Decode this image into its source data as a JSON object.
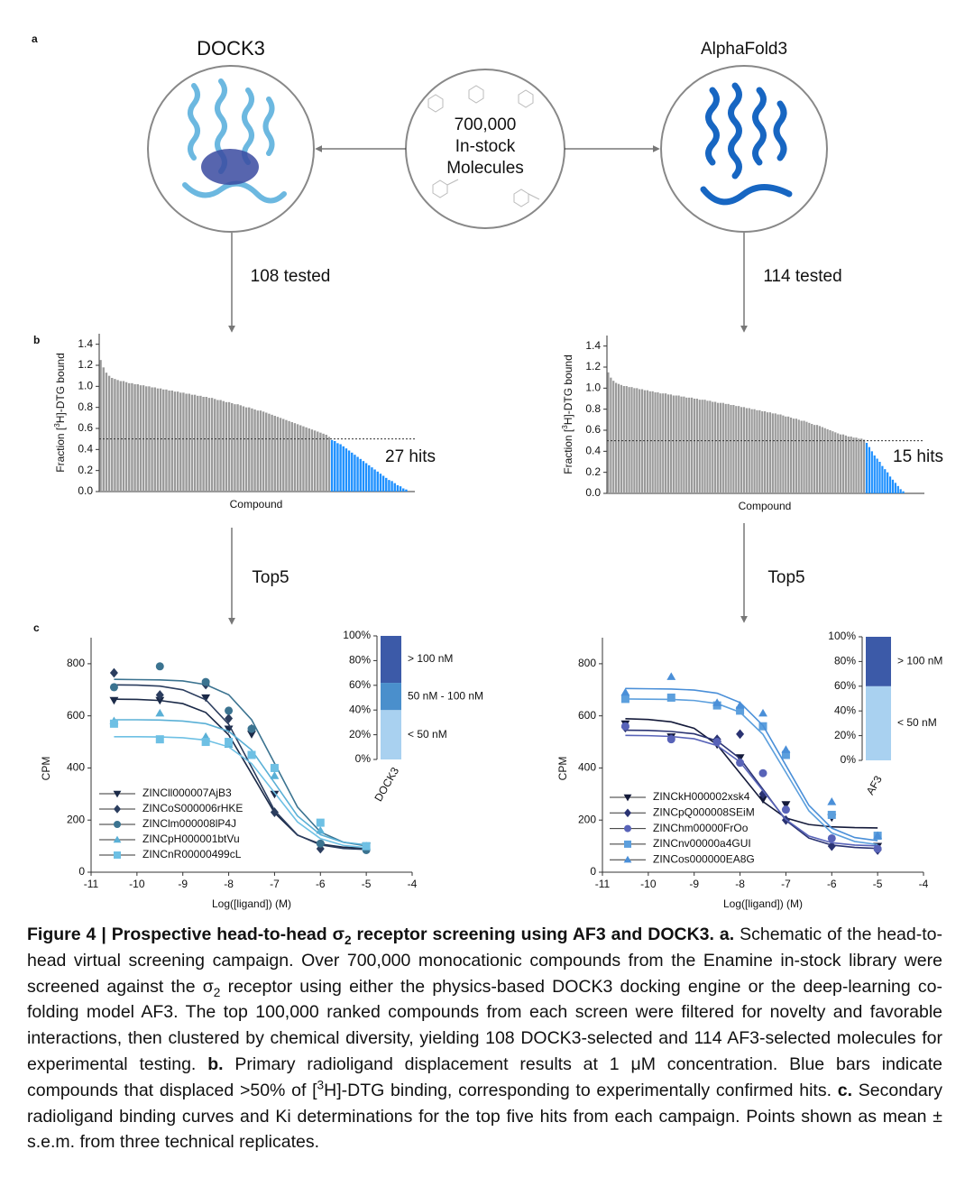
{
  "panel_a": {
    "label": "a",
    "left_title": "DOCK3",
    "right_title": "AlphaFold3",
    "center_text": [
      "700,000",
      "In-stock",
      "Molecules"
    ],
    "left_count": "108 tested",
    "right_count": "114 tested"
  },
  "panel_b_label": "b",
  "panel_c_label": "c",
  "top_labels": [
    "Top5",
    "Top5"
  ],
  "chart_data": [
    {
      "type": "bar",
      "xlabel": "Compound",
      "ylabel": [
        {
          "text": "Fraction ["
        },
        {
          "text": "3",
          "style": "sup"
        },
        {
          "text": "H]-DTG bound"
        }
      ],
      "ylim": [
        0,
        1.5
      ],
      "yticks": [
        {
          "value": 0,
          "label": "0.0"
        },
        0.2,
        0.4,
        0.6,
        0.8,
        {
          "value": 1,
          "label": "1.0"
        },
        1.2,
        1.4
      ],
      "threshold": 0.5,
      "annotation": "27 hits",
      "series": [
        {
          "color": "#9a9a9a",
          "values": [
            1.25,
            1.18,
            1.13,
            1.1,
            1.08,
            1.07,
            1.06,
            1.05,
            1.05,
            1.04,
            1.03,
            1.03,
            1.02,
            1.02,
            1.01,
            1.01,
            1.0,
            1.0,
            0.99,
            0.99,
            0.98,
            0.98,
            0.97,
            0.97,
            0.96,
            0.96,
            0.95,
            0.95,
            0.94,
            0.94,
            0.93,
            0.93,
            0.92,
            0.92,
            0.91,
            0.91,
            0.9,
            0.9,
            0.89,
            0.89,
            0.88,
            0.87,
            0.87,
            0.86,
            0.85,
            0.85,
            0.84,
            0.83,
            0.83,
            0.82,
            0.81,
            0.8,
            0.8,
            0.79,
            0.78,
            0.77,
            0.77,
            0.76,
            0.75,
            0.74,
            0.73,
            0.72,
            0.71,
            0.7,
            0.69,
            0.68,
            0.67,
            0.66,
            0.65,
            0.64,
            0.63,
            0.62,
            0.61,
            0.6,
            0.59,
            0.58,
            0.57,
            0.56,
            0.55,
            0.54,
            0.52
          ]
        },
        {
          "color": "#1e90ff",
          "values": [
            0.49,
            0.48,
            0.46,
            0.45,
            0.43,
            0.41,
            0.39,
            0.37,
            0.35,
            0.33,
            0.31,
            0.29,
            0.27,
            0.25,
            0.23,
            0.21,
            0.19,
            0.17,
            0.15,
            0.13,
            0.11,
            0.1,
            0.08,
            0.06,
            0.05,
            0.03,
            0.02
          ]
        }
      ]
    },
    {
      "type": "bar",
      "xlabel": "Compound",
      "ylabel": [
        {
          "text": "Fraction ["
        },
        {
          "text": "3",
          "style": "sup"
        },
        {
          "text": "H]-DTG bound"
        }
      ],
      "ylim": [
        0,
        1.5
      ],
      "yticks": [
        {
          "value": 0,
          "label": "0.0"
        },
        0.2,
        0.4,
        0.6,
        0.8,
        {
          "value": 1,
          "label": "1.0"
        },
        1.2,
        1.4
      ],
      "threshold": 0.5,
      "annotation": "15 hits",
      "series": [
        {
          "color": "#9a9a9a",
          "values": [
            1.15,
            1.1,
            1.07,
            1.05,
            1.04,
            1.03,
            1.02,
            1.02,
            1.01,
            1.01,
            1.0,
            1.0,
            0.99,
            0.99,
            0.98,
            0.98,
            0.97,
            0.97,
            0.96,
            0.96,
            0.95,
            0.95,
            0.95,
            0.94,
            0.94,
            0.93,
            0.93,
            0.93,
            0.92,
            0.92,
            0.91,
            0.91,
            0.91,
            0.9,
            0.9,
            0.89,
            0.89,
            0.89,
            0.88,
            0.88,
            0.87,
            0.87,
            0.86,
            0.86,
            0.86,
            0.85,
            0.85,
            0.84,
            0.84,
            0.83,
            0.83,
            0.82,
            0.82,
            0.81,
            0.81,
            0.8,
            0.8,
            0.79,
            0.79,
            0.78,
            0.78,
            0.77,
            0.77,
            0.76,
            0.76,
            0.75,
            0.75,
            0.74,
            0.73,
            0.73,
            0.72,
            0.71,
            0.71,
            0.7,
            0.69,
            0.69,
            0.68,
            0.67,
            0.66,
            0.65,
            0.65,
            0.64,
            0.63,
            0.62,
            0.61,
            0.6,
            0.59,
            0.58,
            0.57,
            0.56,
            0.56,
            0.55,
            0.54,
            0.54,
            0.53,
            0.53,
            0.52,
            0.52,
            0.51
          ]
        },
        {
          "color": "#1e90ff",
          "values": [
            0.48,
            0.44,
            0.4,
            0.36,
            0.33,
            0.3,
            0.26,
            0.23,
            0.2,
            0.16,
            0.13,
            0.1,
            0.07,
            0.04,
            0.02
          ]
        }
      ]
    },
    {
      "type": "dose-response",
      "xlabel": "Log([ligand]) (M)",
      "ylabel": "CPM",
      "xlim": [
        -11,
        -4
      ],
      "xticks": [
        -11,
        -10,
        -9,
        -8,
        -7,
        -6,
        -5,
        -4
      ],
      "ylim": [
        0,
        900
      ],
      "yticks": [
        0,
        200,
        400,
        600,
        800
      ],
      "x": [
        -10.5,
        -9.5,
        -8.5,
        -8,
        -7.5,
        -7,
        -6,
        -5
      ],
      "fit_x": [
        -10.5,
        -10,
        -9.5,
        -9,
        -8.5,
        -8,
        -7.5,
        -7,
        -6.5,
        -6,
        -5.5,
        -5
      ],
      "series": [
        {
          "name": "ZINCll000007AjB3",
          "color": "#1b2a48",
          "marker": "inverted-triangle",
          "values": [
            660,
            660,
            670,
            550,
            530,
            300,
            100,
            100
          ],
          "fit_values": [
            664,
            663,
            659,
            647,
            613,
            527,
            378,
            228,
            142,
            108,
            96,
            92
          ]
        },
        {
          "name": "ZINCoS000006rHKE",
          "color": "#2b3d5e",
          "marker": "diamond",
          "values": [
            765,
            680,
            720,
            590,
            550,
            230,
            90,
            90
          ],
          "fit_values": [
            719,
            718,
            714,
            700,
            662,
            568,
            403,
            237,
            143,
            105,
            91,
            87
          ]
        },
        {
          "name": "ZINClm000008lP4J",
          "color": "#3b7390",
          "marker": "circle",
          "values": [
            710,
            790,
            730,
            620,
            550,
            400,
            110,
            85
          ],
          "fit_values": [
            740,
            739,
            738,
            734,
            720,
            681,
            585,
            418,
            250,
            154,
            115,
            101
          ]
        },
        {
          "name": "ZINCpH000001btVu",
          "color": "#5ab0d6",
          "marker": "triangle",
          "values": [
            580,
            610,
            520,
            490,
            450,
            370,
            160,
            100
          ],
          "fit_values": [
            585,
            585,
            584,
            580,
            570,
            541,
            469,
            343,
            216,
            144,
            115,
            105
          ]
        },
        {
          "name": "ZINCnR00000499cL",
          "color": "#6ec0e4",
          "marker": "square",
          "values": [
            570,
            510,
            500,
            500,
            450,
            400,
            190,
            100
          ],
          "fit_values": [
            520,
            520,
            519,
            516,
            507,
            481,
            417,
            305,
            193,
            129,
            103,
            94
          ]
        }
      ]
    },
    {
      "type": "dose-response",
      "xlabel": "Log([ligand]) (M)",
      "ylabel": "CPM",
      "xlim": [
        -11,
        -4
      ],
      "xticks": [
        -11,
        -10,
        -9,
        -8,
        -7,
        -6,
        -5,
        -4
      ],
      "ylim": [
        0,
        900
      ],
      "yticks": [
        0,
        200,
        400,
        600,
        800
      ],
      "x": [
        -10.5,
        -9.5,
        -8.5,
        -8,
        -7.5,
        -7,
        -6,
        -5
      ],
      "fit_x": [
        -10.5,
        -10,
        -9.5,
        -9,
        -8.5,
        -8,
        -7.5,
        -7,
        -6.5,
        -6,
        -5.5,
        -5
      ],
      "series": [
        {
          "name": "ZINCkH000002xsk4",
          "color": "#141a3a",
          "marker": "inverted-triangle",
          "values": [
            570,
            520,
            490,
            440,
            280,
            260,
            210,
            100
          ],
          "fit_values": [
            589,
            586,
            577,
            552,
            489,
            380,
            271,
            208,
            183,
            174,
            171,
            170
          ]
        },
        {
          "name": "ZINCpQ000008SEiM",
          "color": "#2a3372",
          "marker": "diamond",
          "values": [
            555,
            515,
            510,
            530,
            300,
            200,
            100,
            85
          ],
          "fit_values": [
            545,
            544,
            540,
            531,
            504,
            436,
            318,
            199,
            131,
            104,
            95,
            91
          ]
        },
        {
          "name": "ZINChm00000FrOo",
          "color": "#5863b8",
          "marker": "circle",
          "values": [
            560,
            510,
            500,
            420,
            380,
            240,
            130,
            90
          ],
          "fit_values": [
            525,
            524,
            521,
            512,
            486,
            423,
            313,
            202,
            139,
            113,
            104,
            101
          ]
        },
        {
          "name": "ZINCnv00000a4GUI",
          "color": "#5c9fdd",
          "marker": "square",
          "values": [
            665,
            670,
            640,
            620,
            560,
            450,
            220,
            140
          ],
          "fit_values": [
            665,
            664,
            663,
            659,
            647,
            614,
            529,
            383,
            236,
            151,
            118,
            106
          ]
        },
        {
          "name": "ZINCos000000EA8G",
          "color": "#4a8fd8",
          "marker": "triangle",
          "values": [
            690,
            750,
            650,
            640,
            610,
            470,
            270,
            140
          ],
          "fit_values": [
            705,
            704,
            703,
            699,
            687,
            651,
            563,
            410,
            257,
            169,
            133,
            121
          ]
        }
      ]
    },
    {
      "type": "stacked-bar",
      "categories": [
        "DOCK3"
      ],
      "ylim": [
        0,
        100
      ],
      "yticks": [
        {
          "value": 0,
          "label": "0%"
        },
        {
          "value": 20,
          "label": "20%"
        },
        {
          "value": 40,
          "label": "40%"
        },
        {
          "value": 60,
          "label": "60%"
        },
        {
          "value": 80,
          "label": "80%"
        },
        {
          "value": 100,
          "label": "100%"
        }
      ],
      "series": [
        {
          "name": "< 50 nM",
          "color": "#a9d1f0",
          "values": [
            40
          ]
        },
        {
          "name": "50 nM - 100 nM",
          "color": "#4a8fcc",
          "values": [
            22
          ]
        },
        {
          "name": "> 100 nM",
          "color": "#3c5aa8",
          "values": [
            38
          ]
        }
      ]
    },
    {
      "type": "stacked-bar",
      "categories": [
        "AF3"
      ],
      "ylim": [
        0,
        100
      ],
      "yticks": [
        {
          "value": 0,
          "label": "0%"
        },
        {
          "value": 20,
          "label": "20%"
        },
        {
          "value": 40,
          "label": "40%"
        },
        {
          "value": 60,
          "label": "60%"
        },
        {
          "value": 80,
          "label": "80%"
        },
        {
          "value": 100,
          "label": "100%"
        }
      ],
      "series": [
        {
          "name": "< 50 nM",
          "color": "#a9d1f0",
          "values": [
            60
          ]
        },
        {
          "name": "> 100 nM",
          "color": "#3c5aa8",
          "values": [
            40
          ]
        }
      ]
    }
  ],
  "caption": [
    {
      "text": "Figure 4 | Prospective head-to-head σ",
      "style": "bold"
    },
    {
      "text": "2",
      "style": "bold-sub"
    },
    {
      "text": " receptor screening using AF3 and DOCK3. a.",
      "style": "bold"
    },
    {
      "text": " Schematic of the head-to-head virtual screening campaign. Over 700,000 monocationic compounds from the Enamine in-stock library were screened against the σ"
    },
    {
      "text": "2",
      "style": "sub"
    },
    {
      "text": " receptor using either the physics-based DOCK3 docking engine or the deep-learning co-folding model AF3. The top 100,000 ranked compounds from each screen were filtered for novelty and favorable interactions, then clustered by chemical diversity, yielding 108 DOCK3-selected and 114 AF3-selected molecules for experimental testing. "
    },
    {
      "text": "b.",
      "style": "bold"
    },
    {
      "text": " Primary radioligand displacement results at 1 μM concentration. Blue bars indicate compounds that displaced >50% of ["
    },
    {
      "text": "3",
      "style": "sup"
    },
    {
      "text": "H]-DTG binding, corresponding to experimentally confirmed hits. "
    },
    {
      "text": "c.",
      "style": "bold"
    },
    {
      "text": " Secondary radioligand binding curves and Ki determinations for the top five hits from each campaign. Points shown as mean ± s.e.m. from three technical replicates."
    }
  ]
}
